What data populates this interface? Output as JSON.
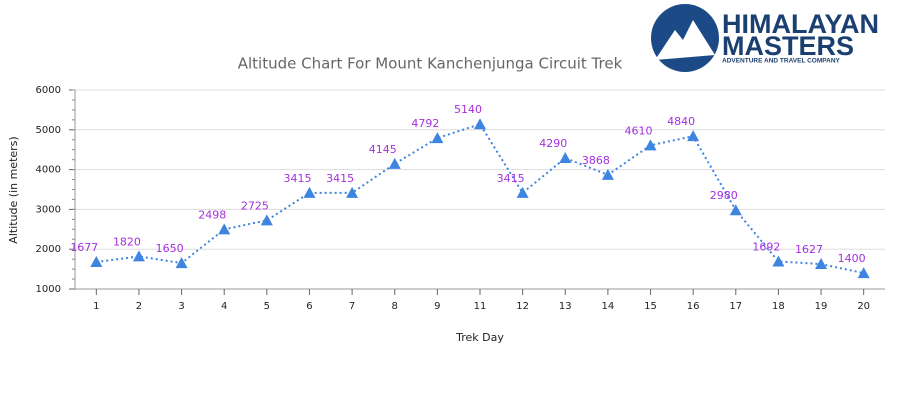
{
  "logo": {
    "line1": "HIMALAYAN",
    "line2": "MASTERS",
    "tagline": "ADVENTURE AND TRAVEL COMPANY"
  },
  "chart_data": {
    "type": "line",
    "title": "Altitude Chart For Mount Kanchenjunga Circuit Trek",
    "x_label": "Trek Day",
    "y_label": "Altitude (in meters)",
    "categories": [
      "1",
      "2",
      "3",
      "4",
      "5",
      "6",
      "7",
      "8",
      "9",
      "11",
      "12",
      "13",
      "14",
      "15",
      "16",
      "17",
      "18",
      "19",
      "20"
    ],
    "series": [
      {
        "name": "Altitude",
        "color": "#3d85e0",
        "values": [
          1677,
          1820,
          1650,
          2498,
          2725,
          3415,
          3415,
          4145,
          4792,
          5140,
          3415,
          4290,
          3868,
          4610,
          4840,
          2980,
          1692,
          1627,
          1400
        ]
      }
    ],
    "label_color": "#a52fe0",
    "ylim": [
      1000,
      6000
    ],
    "yticks": [
      1000,
      2000,
      3000,
      4000,
      5000,
      6000
    ],
    "grid": true
  }
}
